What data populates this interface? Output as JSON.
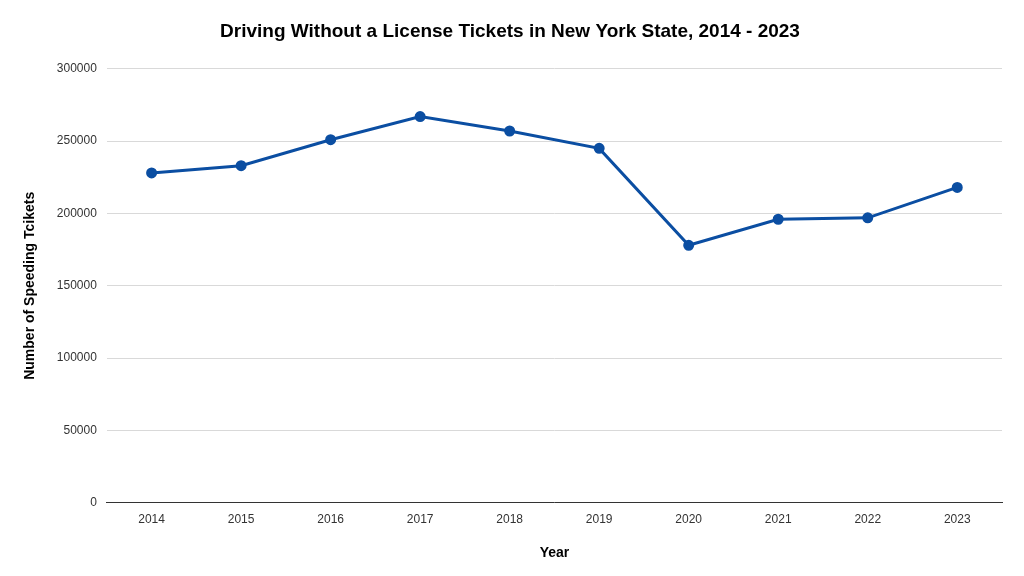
{
  "chart_data": {
    "type": "line",
    "title": "Driving Without a License Tickets in New York State, 2014 - 2023",
    "x_label": "Year",
    "y_label": "Number of Speeding Tcikets",
    "categories": [
      "2014",
      "2015",
      "2016",
      "2017",
      "2018",
      "2019",
      "2020",
      "2021",
      "2022",
      "2023"
    ],
    "values": [
      228000,
      233000,
      251000,
      267000,
      257000,
      245000,
      178000,
      196000,
      197000,
      218000
    ],
    "color": "#0b4ea2",
    "marker": "circle",
    "line_style": "solid",
    "ylim": [
      0,
      300000
    ],
    "yticks": [
      0,
      50000,
      100000,
      150000,
      200000,
      250000,
      300000
    ],
    "grid": true
  }
}
